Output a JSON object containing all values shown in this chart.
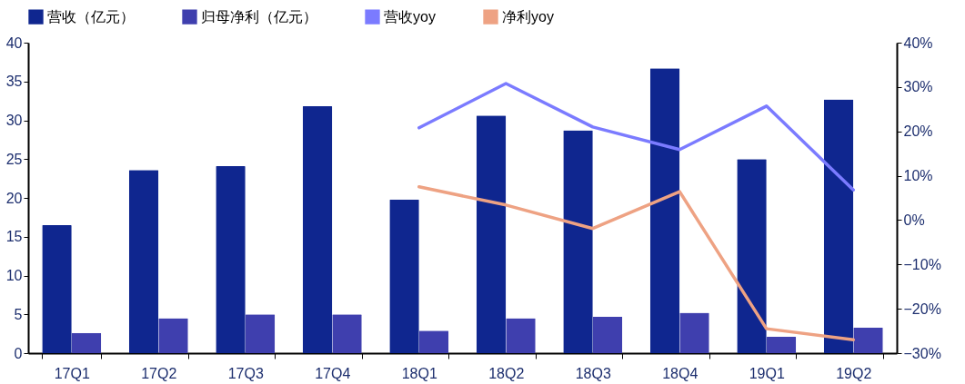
{
  "chart_data": {
    "type": "bar",
    "categories": [
      "17Q1",
      "17Q2",
      "17Q3",
      "17Q4",
      "18Q1",
      "18Q2",
      "18Q3",
      "18Q4",
      "19Q1",
      "19Q2"
    ],
    "series": [
      {
        "name": "营收（亿元）",
        "type": "bar",
        "color": "#0f268f",
        "values": [
          16.5,
          23.6,
          24.1,
          31.8,
          19.8,
          30.6,
          28.7,
          36.7,
          25.0,
          32.7
        ]
      },
      {
        "name": "归母净利（亿元）",
        "type": "bar",
        "color": "#3f3fae",
        "values": [
          2.6,
          4.5,
          5.0,
          5.0,
          2.9,
          4.5,
          4.7,
          5.2,
          2.1,
          3.3
        ]
      },
      {
        "name": "营收yoy",
        "type": "line",
        "axis": "y2",
        "color": "#7b7bff",
        "values": [
          null,
          null,
          null,
          null,
          20.8,
          30.8,
          21.0,
          15.9,
          25.7,
          6.8
        ]
      },
      {
        "name": "净利yoy",
        "type": "line",
        "axis": "y2",
        "color": "#eea283",
        "values": [
          null,
          null,
          null,
          null,
          7.5,
          3.4,
          -1.9,
          6.4,
          -24.5,
          -27.0
        ]
      }
    ],
    "ylim": [
      0,
      40
    ],
    "yticks": [
      0,
      5,
      10,
      15,
      20,
      25,
      30,
      35,
      40
    ],
    "y2lim": [
      -30,
      40
    ],
    "y2ticks": [
      {
        "value": -30,
        "label": "−30%"
      },
      {
        "value": -20,
        "label": "−20%"
      },
      {
        "value": -10,
        "label": "−10%"
      },
      {
        "value": 0,
        "label": "0%"
      },
      {
        "value": 10,
        "label": "10%"
      },
      {
        "value": 20,
        "label": "20%"
      },
      {
        "value": 30,
        "label": "30%"
      },
      {
        "value": 40,
        "label": "40%"
      }
    ],
    "grid": false,
    "legend": "top"
  }
}
